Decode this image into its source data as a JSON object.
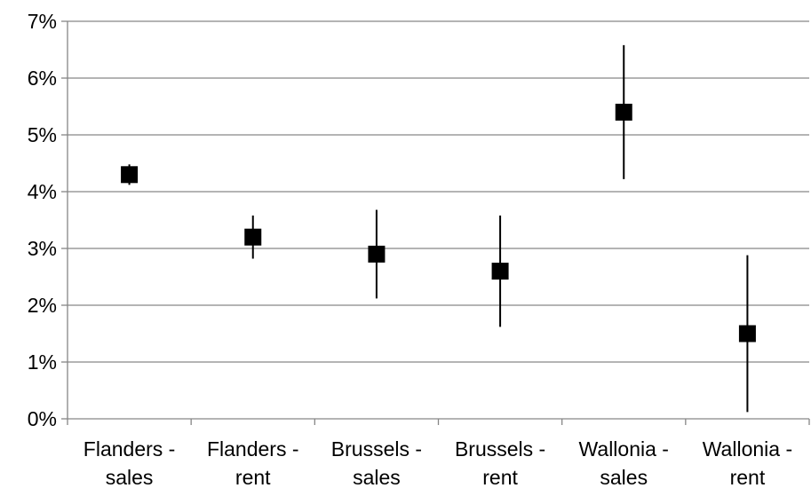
{
  "chart_data": {
    "type": "scatter",
    "title": "",
    "xlabel": "",
    "ylabel": "",
    "categories": [
      [
        "Flanders -",
        "sales"
      ],
      [
        "Flanders -",
        "rent"
      ],
      [
        "Brussels -",
        "sales"
      ],
      [
        "Brussels -",
        "rent"
      ],
      [
        "Wallonia -",
        "sales"
      ],
      [
        "Wallonia -",
        "rent"
      ]
    ],
    "y_tick_labels": [
      "0%",
      "1%",
      "2%",
      "3%",
      "4%",
      "5%",
      "6%",
      "7%"
    ],
    "ylim": [
      0,
      7
    ],
    "y_unit": "%",
    "grid": true,
    "legend": "none",
    "marker": "square",
    "series": [
      {
        "values": [
          4.3,
          3.2,
          2.9,
          2.6,
          5.4,
          1.5
        ],
        "lower": [
          4.12,
          2.82,
          2.12,
          1.62,
          4.22,
          0.12
        ],
        "upper": [
          4.48,
          3.58,
          3.68,
          3.58,
          6.58,
          2.88
        ]
      }
    ],
    "colors": {
      "marker": "#000000",
      "error_bar": "#000000",
      "grid": "#868686",
      "axis": "#868686"
    }
  }
}
